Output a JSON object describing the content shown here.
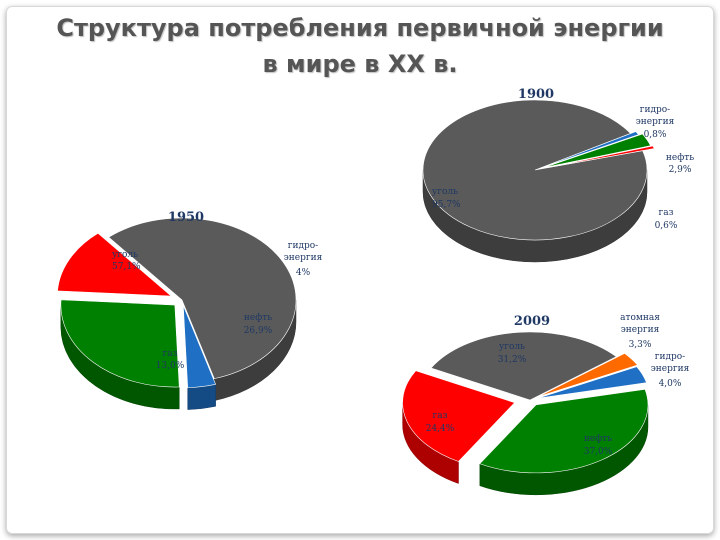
{
  "title": {
    "line1": "Структура потребления первичной энергии",
    "line2": "в мире в ХХ в."
  },
  "colors": {
    "coal": "#5a5a5a",
    "gas": "#ff0000",
    "oil": "#008000",
    "hydro": "#1f6fc4",
    "nuclear": "#ff6a00"
  },
  "chart_data": [
    {
      "type": "pie",
      "title": "1900",
      "slices": [
        {
          "key": "coal",
          "name": "уголь",
          "value": 95.7,
          "label": "95,7%"
        },
        {
          "key": "hydro",
          "name": "гидро-энергия",
          "value": 0.8,
          "label": "0,8%"
        },
        {
          "key": "oil",
          "name": "нефть",
          "value": 2.9,
          "label": "2,9%"
        },
        {
          "key": "gas",
          "name": "газ",
          "value": 0.6,
          "label": "0,6%"
        }
      ]
    },
    {
      "type": "pie",
      "title": "1950",
      "slices": [
        {
          "key": "coal",
          "name": "уголь",
          "value": 57.1,
          "label": "57,1%"
        },
        {
          "key": "hydro",
          "name": "гидро-энергия",
          "value": 4.0,
          "label": "4%"
        },
        {
          "key": "oil",
          "name": "нефть",
          "value": 26.9,
          "label": "26,9%"
        },
        {
          "key": "gas",
          "name": "газ",
          "value": 13.0,
          "label": "13,0%"
        }
      ]
    },
    {
      "type": "pie",
      "title": "2009",
      "slices": [
        {
          "key": "coal",
          "name": "уголь",
          "value": 31.2,
          "label": "31,2%"
        },
        {
          "key": "nuclear",
          "name": "атомная энергия",
          "value": 3.3,
          "label": "3,3%"
        },
        {
          "key": "hydro",
          "name": "гидро-энергия",
          "value": 4.0,
          "label": "4,0%"
        },
        {
          "key": "oil",
          "name": "нефть",
          "value": 37.0,
          "label": "37,0%"
        },
        {
          "key": "gas",
          "name": "газ",
          "value": 24.4,
          "label": "24,4%"
        }
      ]
    }
  ]
}
